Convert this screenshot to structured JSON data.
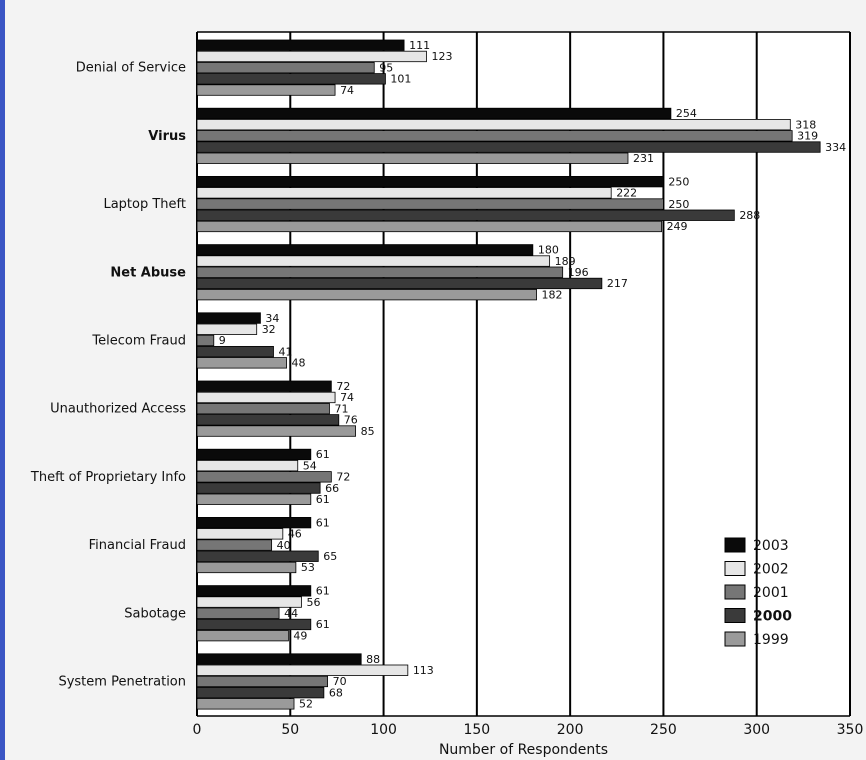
{
  "chart_data": {
    "type": "bar",
    "orientation": "horizontal",
    "xlabel": "Number of Respondents",
    "xlim": [
      0,
      350
    ],
    "xticks": [
      0,
      50,
      100,
      150,
      200,
      250,
      300,
      350
    ],
    "grid": "vertical",
    "legend_position": "bottom-right",
    "categories": [
      "Denial of Service",
      "Virus",
      "Laptop Theft",
      "Net Abuse",
      "Telecom Fraud",
      "Unauthorized Access",
      "Theft of Proprietary Info",
      "Financial Fraud",
      "Sabotage",
      "System Penetration"
    ],
    "bold_categories": [
      "Virus",
      "Net Abuse"
    ],
    "series": [
      {
        "name": "2003",
        "color": "#0a0a0a",
        "values": [
          111,
          254,
          250,
          180,
          34,
          72,
          61,
          61,
          61,
          88
        ]
      },
      {
        "name": "2002",
        "color": "#e6e6e6",
        "values": [
          123,
          318,
          222,
          189,
          32,
          74,
          54,
          46,
          56,
          113
        ]
      },
      {
        "name": "2001",
        "color": "#767676",
        "values": [
          95,
          319,
          250,
          196,
          9,
          71,
          72,
          40,
          44,
          70
        ]
      },
      {
        "name": "2000",
        "color": "#3a3a3a",
        "values": [
          101,
          334,
          288,
          217,
          41,
          76,
          66,
          65,
          61,
          68
        ]
      },
      {
        "name": "1999",
        "color": "#9a9a9a",
        "values": [
          74,
          231,
          249,
          182,
          48,
          85,
          61,
          53,
          49,
          52
        ]
      }
    ]
  }
}
